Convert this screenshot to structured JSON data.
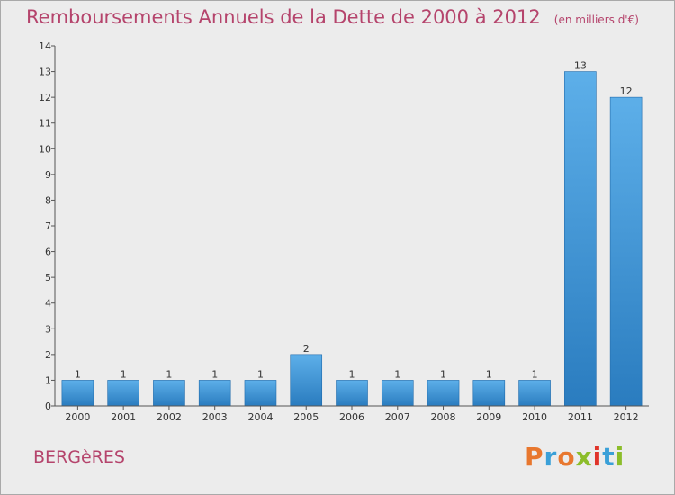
{
  "header": {
    "title": "Remboursements Annuels de la Dette de 2000 à 2012",
    "unit": "(en milliers d'€)"
  },
  "commune": "BERGèRES",
  "logo": {
    "text": "Proxiti",
    "colors": [
      "#e8772e",
      "#3aa0d8",
      "#e8772e",
      "#8cbd2a",
      "#e0342a",
      "#3aa0d8",
      "#8cbd2a"
    ]
  },
  "chart_data": {
    "type": "bar",
    "title": "Remboursements Annuels de la Dette de 2000 à 2012",
    "subtitle": "(en milliers d'€)",
    "categories": [
      "2000",
      "2001",
      "2002",
      "2003",
      "2004",
      "2005",
      "2006",
      "2007",
      "2008",
      "2009",
      "2010",
      "2011",
      "2012"
    ],
    "values": [
      1,
      1,
      1,
      1,
      1,
      2,
      1,
      1,
      1,
      1,
      1,
      13,
      12
    ],
    "ylim": [
      0,
      14
    ],
    "yticks": [
      0,
      1,
      2,
      3,
      4,
      5,
      6,
      7,
      8,
      9,
      10,
      11,
      12,
      13,
      14
    ],
    "grid": false,
    "legend": "none",
    "colors": {
      "bar_top": "#5dafe9",
      "bar_bottom": "#2a7cbf",
      "bar_edge": "#1f6aab"
    }
  }
}
